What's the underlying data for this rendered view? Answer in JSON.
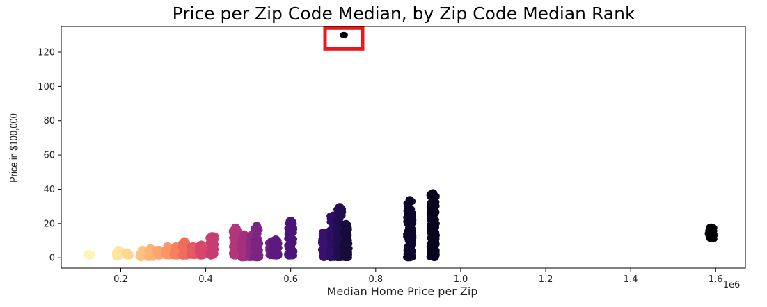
{
  "chart_data": {
    "type": "scatter",
    "title": "Price per Zip Code Median, by Zip Code Median Rank",
    "xlabel": "Median Home Price per Zip",
    "ylabel": "Price in $100,000",
    "x_offset_label": "1e6",
    "xlim": [
      0.06,
      1.67
    ],
    "ylim": [
      -6,
      135
    ],
    "x_ticks": [
      0.2,
      0.4,
      0.6,
      0.8,
      1.0,
      1.2,
      1.4,
      1.6
    ],
    "x_tick_labels": [
      "0.2",
      "0.4",
      "0.6",
      "0.8",
      "1.0",
      "1.2",
      "1.4",
      "1.6"
    ],
    "y_ticks": [
      0,
      20,
      40,
      60,
      80,
      100,
      120
    ],
    "y_tick_labels": [
      "0",
      "20",
      "40",
      "60",
      "80",
      "100",
      "120"
    ],
    "grid": false,
    "legend": "none",
    "colormap": "magma_r",
    "clusters": [
      {
        "x": 0.125,
        "y_min": 1,
        "y_max": 2.5,
        "color": "#fcf6b6"
      },
      {
        "x": 0.195,
        "y_min": 0,
        "y_max": 5,
        "color": "#fde5a0"
      },
      {
        "x": 0.215,
        "y_min": 1,
        "y_max": 3.5,
        "color": "#fdd692"
      },
      {
        "x": 0.25,
        "y_min": 0,
        "y_max": 5,
        "color": "#fdc484"
      },
      {
        "x": 0.27,
        "y_min": 0,
        "y_max": 6,
        "color": "#fdb577"
      },
      {
        "x": 0.29,
        "y_min": 1,
        "y_max": 5,
        "color": "#fca56c"
      },
      {
        "x": 0.31,
        "y_min": 1,
        "y_max": 7,
        "color": "#fb9466"
      },
      {
        "x": 0.33,
        "y_min": 1,
        "y_max": 7,
        "color": "#f7805e"
      },
      {
        "x": 0.35,
        "y_min": 1,
        "y_max": 10,
        "color": "#f06c5c"
      },
      {
        "x": 0.37,
        "y_min": 1,
        "y_max": 7,
        "color": "#e45a62"
      },
      {
        "x": 0.39,
        "y_min": 1,
        "y_max": 8,
        "color": "#d6476a"
      },
      {
        "x": 0.415,
        "y_min": 1,
        "y_max": 13,
        "color": "#c73d73"
      },
      {
        "x": 0.47,
        "y_min": 1,
        "y_max": 18,
        "color": "#b4367a"
      },
      {
        "x": 0.49,
        "y_min": 0,
        "y_max": 14,
        "color": "#a2307e"
      },
      {
        "x": 0.51,
        "y_min": 0,
        "y_max": 14,
        "color": "#8e2a80"
      },
      {
        "x": 0.52,
        "y_min": 0,
        "y_max": 19,
        "color": "#7d2482"
      },
      {
        "x": 0.555,
        "y_min": 1,
        "y_max": 10,
        "color": "#6b1f81"
      },
      {
        "x": 0.565,
        "y_min": 1,
        "y_max": 11,
        "color": "#5c1a7e"
      },
      {
        "x": 0.6,
        "y_min": 1,
        "y_max": 22,
        "color": "#4a1578"
      },
      {
        "x": 0.68,
        "y_min": 0,
        "y_max": 15,
        "color": "#3b0f70"
      },
      {
        "x": 0.7,
        "y_min": 0,
        "y_max": 25,
        "color": "#2f0f63"
      },
      {
        "x": 0.715,
        "y_min": 0,
        "y_max": 30,
        "color": "#230d52"
      },
      {
        "x": 0.73,
        "y_min": 0,
        "y_max": 20,
        "color": "#170b3a"
      },
      {
        "x": 0.88,
        "y_min": 0,
        "y_max": 34,
        "color": "#0d0829"
      },
      {
        "x": 0.935,
        "y_min": 0,
        "y_max": 38,
        "color": "#07051d"
      },
      {
        "x": 1.59,
        "y_min": 11,
        "y_max": 18,
        "color": "#000004"
      }
    ],
    "outliers": [
      {
        "x": 0.725,
        "y": 130,
        "color": "#000004"
      }
    ],
    "highlight_box": {
      "x": 0.725,
      "y": 130,
      "color": "#e8191c"
    }
  }
}
